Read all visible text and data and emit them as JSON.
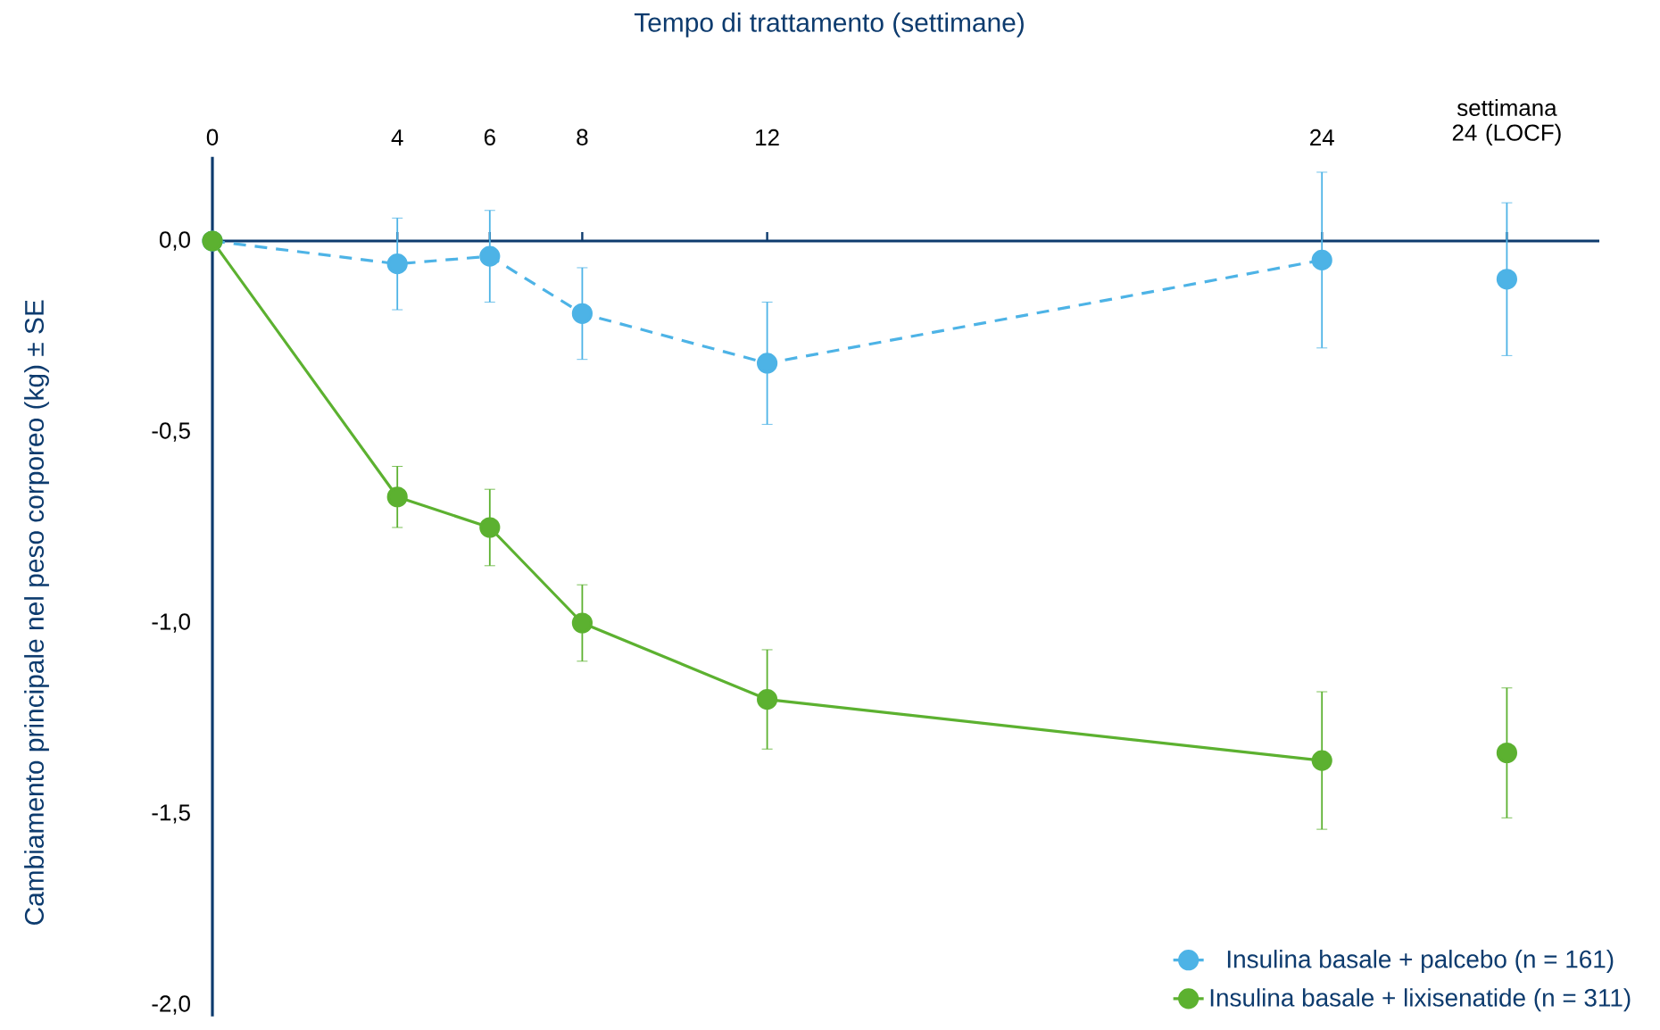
{
  "chart_data": {
    "type": "line",
    "xlabel": "Tempo di trattamento (settimane)",
    "ylabel": "Cambiamento principale nel peso corporeo (kg) ± SE",
    "xlim": [
      0,
      30
    ],
    "ylim": [
      -2.03,
      0.22
    ],
    "xticks": [
      0,
      4,
      6,
      8,
      12,
      24,
      {
        "value": 28,
        "label": "settimana 24 (LOCF)"
      }
    ],
    "yticks": [
      {
        "value": 0,
        "label": "0,0"
      },
      {
        "value": -0.5,
        "label": "-0,5"
      },
      {
        "value": -1,
        "label": "-1,0"
      },
      {
        "value": -1.5,
        "label": "-1,5"
      },
      {
        "value": -2,
        "label": "-2,0"
      }
    ],
    "ref_lines": [
      {
        "axis": "y",
        "value": 0,
        "color": "#0d3b6e"
      }
    ],
    "grid": false,
    "legend": "bottom right",
    "marker": "circle",
    "series": [
      {
        "name": "Insulina basale + palcebo (n = 161)",
        "line_style": "dashed",
        "color": "#4db3e6",
        "x": [
          0,
          4,
          6,
          8,
          12,
          24
        ],
        "values": [
          0,
          -0.06,
          -0.04,
          -0.19,
          -0.32,
          -0.05
        ],
        "errors": [
          null,
          0.12,
          0.12,
          0.12,
          0.16,
          0.23
        ]
      },
      {
        "type": "scatter",
        "color": "#4db3e6",
        "x": [
          28
        ],
        "values": [
          -0.1
        ],
        "errors": [
          0.2
        ]
      },
      {
        "name": "Insulina basale + lixisenatide (n = 311)",
        "line_style": "solid",
        "color": "#5cb130",
        "x": [
          0,
          4,
          6,
          8,
          12,
          24
        ],
        "values": [
          0,
          -0.67,
          -0.75,
          -1.0,
          -1.2,
          -1.36
        ],
        "errors": [
          null,
          0.08,
          0.1,
          0.1,
          0.13,
          0.18
        ]
      },
      {
        "type": "scatter",
        "color": "#5cb130",
        "x": [
          28
        ],
        "values": [
          -1.34
        ],
        "errors": [
          0.17
        ]
      }
    ]
  }
}
